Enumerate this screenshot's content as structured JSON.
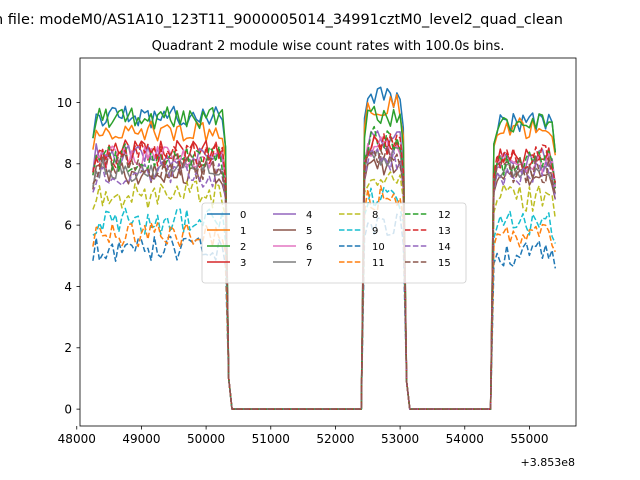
{
  "chart_data": {
    "type": "line",
    "suptitle": "n file: modeM0/AS1A10_123T11_9000005014_34991cztM0_level2_quad_clean",
    "title": "Quadrant 2 module wise count rates with 100.0s bins.",
    "xlabel": "",
    "ylabel": "",
    "x_offset_label": "+3.853e8",
    "xlim": [
      48050,
      55720
    ],
    "ylim": [
      -0.55,
      11.45
    ],
    "x_ticks": [
      48000,
      49000,
      50000,
      51000,
      52000,
      53000,
      54000,
      55000
    ],
    "x_tick_labels": [
      "48000",
      "49000",
      "50000",
      "51000",
      "52000",
      "53000",
      "54000",
      "55000"
    ],
    "y_ticks": [
      0,
      2,
      4,
      6,
      8,
      10
    ],
    "y_tick_labels": [
      "0",
      "2",
      "4",
      "6",
      "8",
      "10"
    ],
    "grid": false,
    "legend": {
      "placement": "center",
      "ncol": 4
    },
    "series": [
      {
        "name": "0",
        "color": "#1f77b4",
        "dash": "solid",
        "w1": 9.5,
        "w2": 10.2,
        "w3": 9.3,
        "seed": 1
      },
      {
        "name": "1",
        "color": "#ff7f0e",
        "dash": "solid",
        "w1": 9.1,
        "w2": 9.9,
        "w3": 9.2,
        "seed": 2
      },
      {
        "name": "2",
        "color": "#2ca02c",
        "dash": "solid",
        "w1": 9.5,
        "w2": 9.5,
        "w3": 9.3,
        "seed": 3
      },
      {
        "name": "3",
        "color": "#d62728",
        "dash": "solid",
        "w1": 8.4,
        "w2": 8.6,
        "w3": 8.2,
        "seed": 4
      },
      {
        "name": "4",
        "color": "#9467bd",
        "dash": "solid",
        "w1": 8.3,
        "w2": 8.7,
        "w3": 8.1,
        "seed": 5
      },
      {
        "name": "5",
        "color": "#8c564b",
        "dash": "solid",
        "w1": 7.7,
        "w2": 8.0,
        "w3": 7.6,
        "seed": 6
      },
      {
        "name": "6",
        "color": "#e377c2",
        "dash": "solid",
        "w1": 8.2,
        "w2": 8.5,
        "w3": 8.0,
        "seed": 7
      },
      {
        "name": "7",
        "color": "#7f7f7f",
        "dash": "solid",
        "w1": 7.8,
        "w2": 8.2,
        "w3": 7.8,
        "seed": 8
      },
      {
        "name": "8",
        "color": "#bcbd22",
        "dash": "dashed",
        "w1": 7.0,
        "w2": 7.6,
        "w3": 6.9,
        "seed": 9
      },
      {
        "name": "9",
        "color": "#17becf",
        "dash": "dashed",
        "w1": 6.1,
        "w2": 6.8,
        "w3": 6.0,
        "seed": 10
      },
      {
        "name": "10",
        "color": "#1f77b4",
        "dash": "dashed",
        "w1": 5.2,
        "w2": 6.0,
        "w3": 5.1,
        "seed": 11
      },
      {
        "name": "11",
        "color": "#ff7f0e",
        "dash": "dashed",
        "w1": 5.7,
        "w2": 6.9,
        "w3": 5.7,
        "seed": 12
      },
      {
        "name": "12",
        "color": "#2ca02c",
        "dash": "dashed",
        "w1": 8.2,
        "w2": 8.8,
        "w3": 8.0,
        "seed": 13
      },
      {
        "name": "13",
        "color": "#d62728",
        "dash": "dashed",
        "w1": 8.3,
        "w2": 8.6,
        "w3": 8.2,
        "seed": 14
      },
      {
        "name": "14",
        "color": "#9467bd",
        "dash": "dashed",
        "w1": 7.6,
        "w2": 8.1,
        "w3": 7.6,
        "seed": 15
      },
      {
        "name": "15",
        "color": "#8c564b",
        "dash": "dashed",
        "w1": 7.9,
        "w2": 8.3,
        "w3": 7.8,
        "seed": 16
      }
    ],
    "segments": [
      {
        "start": 48250,
        "end": 50300,
        "key": "w1"
      },
      {
        "start": 50400,
        "end": 52350,
        "key": "zero"
      },
      {
        "start": 52450,
        "end": 53050,
        "key": "w2"
      },
      {
        "start": 53150,
        "end": 54350,
        "key": "zero"
      },
      {
        "start": 54450,
        "end": 55400,
        "key": "w3"
      }
    ]
  }
}
